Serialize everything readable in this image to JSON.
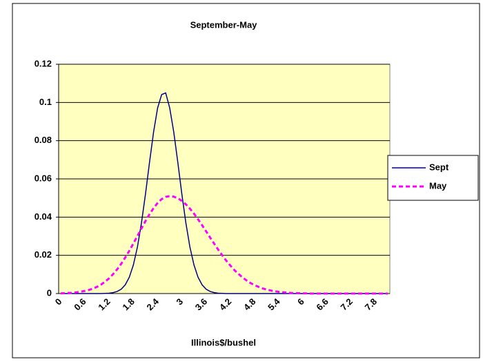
{
  "chart_data": {
    "type": "line",
    "title": "September-May",
    "x_label": "Illinois$/bushel",
    "categories": [
      "0",
      null,
      null,
      null,
      null,
      null,
      "0.6",
      null,
      null,
      null,
      null,
      null,
      "1.2",
      null,
      null,
      null,
      null,
      null,
      "1.8",
      null,
      null,
      null,
      null,
      null,
      "2.4",
      null,
      null,
      null,
      null,
      null,
      "3",
      null,
      null,
      null,
      null,
      null,
      "3.6",
      null,
      null,
      null,
      null,
      null,
      "4.2",
      null,
      null,
      null,
      null,
      null,
      "4.8",
      null,
      null,
      null,
      null,
      null,
      "5.4",
      null,
      null,
      null,
      null,
      null,
      "6",
      null,
      null,
      null,
      null,
      null,
      "6.6",
      null,
      null,
      null,
      null,
      null,
      "7.2",
      null,
      null,
      null,
      null,
      null,
      "7.8",
      null,
      null,
      null
    ],
    "series": [
      {
        "name": "Sept",
        "color": "#000080",
        "dashed": false,
        "values": [
          0,
          0,
          0,
          0,
          0,
          0,
          0,
          0,
          0,
          0,
          0,
          0.0001,
          0.0002,
          0.0005,
          0.0011,
          0.0023,
          0.0046,
          0.0086,
          0.015,
          0.0243,
          0.0369,
          0.0521,
          0.0687,
          0.0845,
          0.0971,
          0.1041,
          0.105,
          0.0971,
          0.0845,
          0.0687,
          0.0521,
          0.0369,
          0.0243,
          0.015,
          0.0086,
          0.0046,
          0.0023,
          0.0011,
          0.0005,
          0.0002,
          0.0001,
          0,
          0,
          0,
          0,
          0,
          0,
          0,
          0,
          0,
          0,
          0,
          0,
          0,
          0,
          0,
          0,
          0,
          0,
          0,
          0,
          0,
          0,
          0,
          0,
          0,
          0,
          0,
          0,
          0,
          0,
          0,
          0,
          0,
          0,
          0,
          0,
          0,
          0,
          0,
          0,
          0
        ]
      },
      {
        "name": "May",
        "color": "#ff00ff",
        "dashed": true,
        "values": [
          0.0001,
          0.0002,
          0.0003,
          0.0004,
          0.0007,
          0.001,
          0.0014,
          0.0019,
          0.0026,
          0.0035,
          0.0047,
          0.0062,
          0.008,
          0.0102,
          0.0127,
          0.0156,
          0.0189,
          0.0224,
          0.0262,
          0.0301,
          0.0341,
          0.0379,
          0.0415,
          0.0447,
          0.0474,
          0.0494,
          0.0506,
          0.051,
          0.0507,
          0.0499,
          0.0485,
          0.0467,
          0.0444,
          0.0418,
          0.0389,
          0.0358,
          0.0326,
          0.0293,
          0.0261,
          0.023,
          0.02,
          0.0172,
          0.0147,
          0.0123,
          0.0103,
          0.0085,
          0.0069,
          0.0055,
          0.0044,
          0.0035,
          0.0027,
          0.0021,
          0.0016,
          0.0012,
          0.0009,
          0.0007,
          0.0005,
          0.0003,
          0.0002,
          0.0002,
          0.0001,
          0.0001,
          0,
          0,
          0,
          0,
          0,
          0,
          0,
          0,
          0,
          0,
          0,
          0,
          0,
          0,
          0,
          0,
          0,
          0,
          0,
          0
        ]
      }
    ],
    "ylim": [
      0,
      0.12
    ],
    "yticks": [
      0,
      0.02,
      0.04,
      0.06,
      0.08,
      0.1,
      0.12
    ],
    "grid": true,
    "plot_background": "#ffffc0",
    "legend_position": "right"
  }
}
